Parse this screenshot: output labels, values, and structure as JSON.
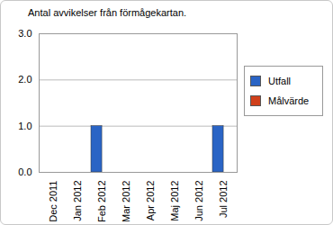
{
  "chart_data": {
    "type": "bar",
    "title": "Antal avvikelser från förmågekartan.",
    "categories": [
      "Dec 2011",
      "Jan 2012",
      "Feb 2012",
      "Mar 2012",
      "Apr 2012",
      "Maj 2012",
      "Jun 2012",
      "Jul 2012"
    ],
    "series": [
      {
        "name": "Utfall",
        "color": "#2a64c5",
        "values": [
          0,
          0,
          1,
          0,
          0,
          0,
          0,
          1
        ]
      },
      {
        "name": "Målvärde",
        "color": "#d0401b",
        "values": [
          0,
          0,
          0,
          0,
          0,
          0,
          0,
          0
        ]
      }
    ],
    "ylim": [
      0,
      3
    ],
    "yticks": [
      0,
      1,
      2,
      3
    ],
    "grid": true,
    "legend": "right"
  }
}
